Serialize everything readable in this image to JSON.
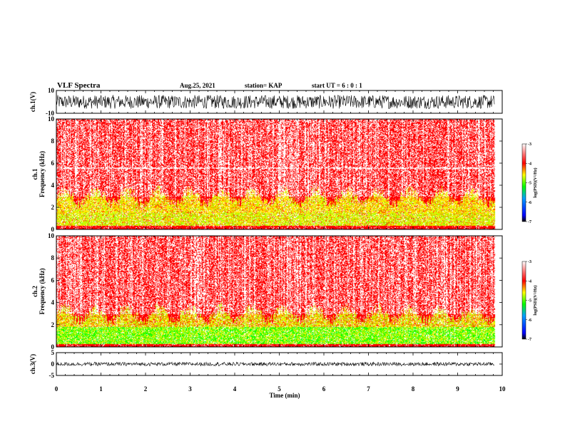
{
  "header": {
    "title": "VLF Spectra",
    "date": "Aug.25, 2021",
    "station": "station= KAP",
    "start": "start UT =  6 : 0 : 1"
  },
  "chart_data": [
    {
      "type": "line",
      "panel": "ch1-waveform",
      "ylabel": "ch.1(V)",
      "ylim": [
        -10,
        10
      ],
      "yticks": [
        "10",
        "-10"
      ],
      "xlim": [
        0,
        10
      ],
      "data_end": 9.83,
      "amplitude_range": [
        -6,
        6
      ]
    },
    {
      "type": "heatmap",
      "panel": "ch1-spectrogram",
      "ylabel": "ch.1\nFrequency (kHz)",
      "ylim": [
        0,
        10
      ],
      "yticks": [
        "0",
        "2",
        "4",
        "6",
        "8",
        "10"
      ],
      "xlim": [
        0,
        10
      ],
      "data_end": 9.83,
      "colorbar": {
        "label": "log(PSD)(V²/Hz)",
        "range": [
          -7,
          -3
        ],
        "ticks": [
          "-3",
          "-4",
          "-5",
          "-6",
          "-7"
        ]
      }
    },
    {
      "type": "heatmap",
      "panel": "ch2-spectrogram",
      "ylabel": "ch.2\nFrequency (kHz)",
      "ylim": [
        0,
        10
      ],
      "yticks": [
        "0",
        "2",
        "4",
        "6",
        "8",
        "10"
      ],
      "xlim": [
        0,
        10
      ],
      "data_end": 9.83,
      "colorbar": {
        "label": "log(PSD)(V²/Hz)",
        "range": [
          -7,
          -3
        ],
        "ticks": [
          "-3",
          "-4",
          "-5",
          "-6",
          "-7"
        ]
      }
    },
    {
      "type": "line",
      "panel": "ch3-waveform",
      "ylabel": "ch.3(V)",
      "ylim": [
        -5,
        5
      ],
      "yticks": [
        "5",
        "0",
        "-5"
      ],
      "xlim": [
        0,
        10
      ],
      "data_end": 9.83,
      "amplitude_range": [
        -0.8,
        0.8
      ]
    }
  ],
  "xaxis": {
    "label": "Time (min)",
    "ticks": [
      "0",
      "1",
      "2",
      "3",
      "4",
      "5",
      "6",
      "7",
      "8",
      "9",
      "10"
    ]
  },
  "colors": {
    "background": "#ffffff",
    "trace": "#000000",
    "spec_low": "#ff0000",
    "spec_mid": "#ffff00",
    "spec_high": "#00ff00"
  }
}
